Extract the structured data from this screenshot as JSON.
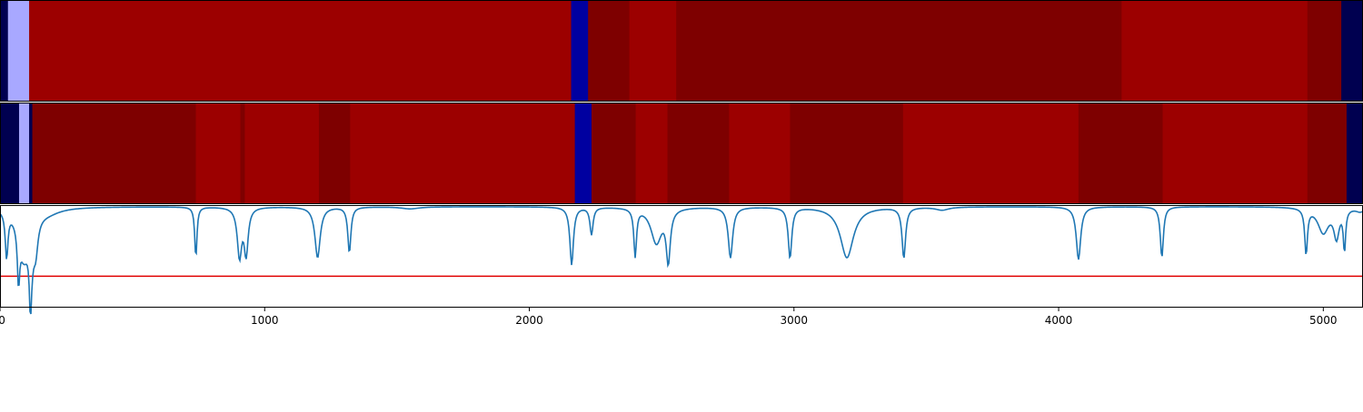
{
  "chart_data": {
    "type": "heatmap",
    "x_range": [
      0,
      5150
    ],
    "x_ticks": [
      {
        "value": 0,
        "label": "0"
      },
      {
        "value": 1000,
        "label": "1000"
      },
      {
        "value": 2000,
        "label": "2000"
      },
      {
        "value": 3000,
        "label": "3000"
      },
      {
        "value": 4000,
        "label": "4000"
      },
      {
        "value": 5000,
        "label": "5000"
      }
    ],
    "title": "",
    "xlabel": "",
    "ylabel": "",
    "grid": false,
    "colors": {
      "navy": "#000050",
      "blue": "#0000a0",
      "light_blue": "#a8a8ff",
      "red": "#9c0000",
      "dark_red": "#7e0000",
      "trace": "#1f77b4",
      "threshold": "#e00000"
    },
    "rows": [
      {
        "name": "",
        "segments": [
          {
            "start": 0,
            "end": 30,
            "color": "navy"
          },
          {
            "start": 30,
            "end": 110,
            "color": "light_blue"
          },
          {
            "start": 110,
            "end": 2158,
            "color": "red"
          },
          {
            "start": 2158,
            "end": 2222,
            "color": "blue"
          },
          {
            "start": 2222,
            "end": 2378,
            "color": "dark_red"
          },
          {
            "start": 2378,
            "end": 2555,
            "color": "red"
          },
          {
            "start": 2555,
            "end": 4238,
            "color": "dark_red"
          },
          {
            "start": 4238,
            "end": 4940,
            "color": "red"
          },
          {
            "start": 4940,
            "end": 5068,
            "color": "dark_red"
          },
          {
            "start": 5068,
            "end": 5150,
            "color": "navy"
          }
        ]
      },
      {
        "name": "",
        "segments": [
          {
            "start": 0,
            "end": 72,
            "color": "navy"
          },
          {
            "start": 72,
            "end": 110,
            "color": "light_blue"
          },
          {
            "start": 110,
            "end": 122,
            "color": "navy"
          },
          {
            "start": 122,
            "end": 740,
            "color": "dark_red"
          },
          {
            "start": 740,
            "end": 908,
            "color": "red"
          },
          {
            "start": 908,
            "end": 925,
            "color": "dark_red"
          },
          {
            "start": 925,
            "end": 1205,
            "color": "red"
          },
          {
            "start": 1205,
            "end": 1323,
            "color": "dark_red"
          },
          {
            "start": 1323,
            "end": 2172,
            "color": "red"
          },
          {
            "start": 2172,
            "end": 2235,
            "color": "blue"
          },
          {
            "start": 2235,
            "end": 2402,
            "color": "dark_red"
          },
          {
            "start": 2402,
            "end": 2522,
            "color": "red"
          },
          {
            "start": 2522,
            "end": 2755,
            "color": "dark_red"
          },
          {
            "start": 2755,
            "end": 2985,
            "color": "red"
          },
          {
            "start": 2985,
            "end": 3412,
            "color": "dark_red"
          },
          {
            "start": 3412,
            "end": 4075,
            "color": "red"
          },
          {
            "start": 4075,
            "end": 4393,
            "color": "dark_red"
          },
          {
            "start": 4393,
            "end": 4940,
            "color": "red"
          },
          {
            "start": 4940,
            "end": 5088,
            "color": "dark_red"
          },
          {
            "start": 5088,
            "end": 5150,
            "color": "navy"
          }
        ]
      }
    ],
    "line_series": {
      "name": "",
      "y_range": [
        0,
        1
      ],
      "baseline": 0.985,
      "dips": [
        {
          "x": 25,
          "depth": 0.45,
          "width": 6
        },
        {
          "x": 70,
          "depth": 0.5,
          "width": 5
        },
        {
          "x": 90,
          "depth": 0.45,
          "width": 25
        },
        {
          "x": 115,
          "depth": 0.58,
          "width": 5
        },
        {
          "x": 120,
          "depth": 0.25,
          "width": 12
        },
        {
          "x": 135,
          "depth": 0.28,
          "width": 10
        },
        {
          "x": 180,
          "depth": 0.05,
          "width": 60
        },
        {
          "x": 740,
          "depth": 0.5,
          "width": 5
        },
        {
          "x": 905,
          "depth": 0.48,
          "width": 10
        },
        {
          "x": 930,
          "depth": 0.45,
          "width": 9
        },
        {
          "x": 1200,
          "depth": 0.5,
          "width": 12
        },
        {
          "x": 1320,
          "depth": 0.45,
          "width": 7
        },
        {
          "x": 1550,
          "depth": 0.02,
          "width": 40
        },
        {
          "x": 2160,
          "depth": 0.57,
          "width": 8
        },
        {
          "x": 2235,
          "depth": 0.27,
          "width": 7
        },
        {
          "x": 2400,
          "depth": 0.47,
          "width": 6
        },
        {
          "x": 2480,
          "depth": 0.35,
          "width": 25
        },
        {
          "x": 2525,
          "depth": 0.5,
          "width": 9
        },
        {
          "x": 2760,
          "depth": 0.5,
          "width": 10
        },
        {
          "x": 2985,
          "depth": 0.5,
          "width": 8
        },
        {
          "x": 3200,
          "depth": 0.5,
          "width": 30
        },
        {
          "x": 3415,
          "depth": 0.5,
          "width": 8
        },
        {
          "x": 3560,
          "depth": 0.03,
          "width": 30
        },
        {
          "x": 4075,
          "depth": 0.52,
          "width": 10
        },
        {
          "x": 4390,
          "depth": 0.5,
          "width": 7
        },
        {
          "x": 4935,
          "depth": 0.45,
          "width": 6
        },
        {
          "x": 5000,
          "depth": 0.25,
          "width": 25
        },
        {
          "x": 5050,
          "depth": 0.28,
          "width": 12
        },
        {
          "x": 5080,
          "depth": 0.4,
          "width": 5
        },
        {
          "x": 5140,
          "depth": 0.04,
          "width": 20
        }
      ],
      "threshold": 0.3
    }
  }
}
